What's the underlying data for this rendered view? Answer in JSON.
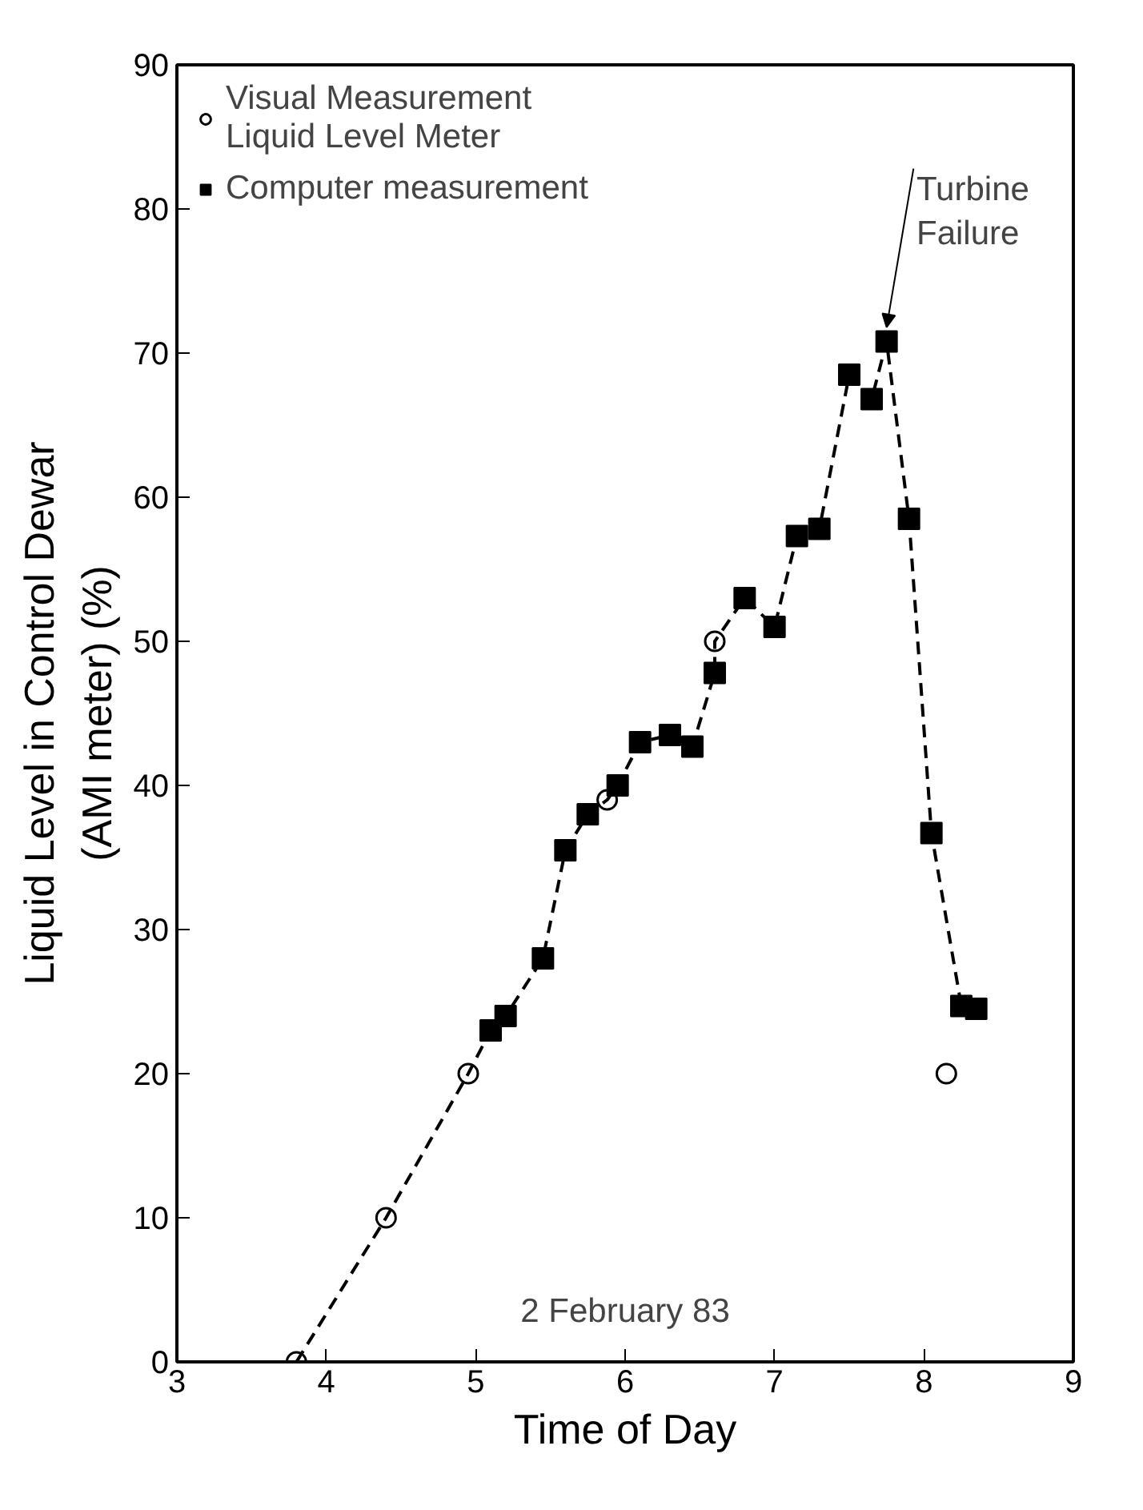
{
  "chart_data": {
    "type": "scatter",
    "xlabel": "Time of Day",
    "ylabel": "Liquid Level in Control Dewar\n(AMI meter) (%)",
    "xlim": [
      3,
      9
    ],
    "ylim": [
      0,
      90
    ],
    "xticks": [
      3,
      4,
      5,
      6,
      7,
      8,
      9
    ],
    "yticks": [
      0,
      10,
      20,
      30,
      40,
      50,
      60,
      70,
      80,
      90
    ],
    "grid": false,
    "legend": "top left",
    "series": [
      {
        "name": "Visual Measurement\nLiquid Level Meter",
        "marker": "circle",
        "color": "#000000",
        "x": [
          3.8,
          4.4,
          4.95,
          5.88,
          6.6,
          8.15
        ],
        "values": [
          0,
          10,
          20,
          39,
          50,
          20
        ]
      },
      {
        "name": "Computer measurement",
        "marker": "square",
        "color": "#000000",
        "x": [
          5.1,
          5.2,
          5.45,
          5.6,
          5.75,
          5.95,
          6.1,
          6.3,
          6.45,
          6.6,
          6.8,
          7.0,
          7.15,
          7.3,
          7.5,
          7.65,
          7.75,
          7.9,
          8.05,
          8.25,
          8.35
        ],
        "values": [
          23,
          24,
          28,
          35.5,
          38,
          40,
          43,
          43.5,
          42.7,
          47.8,
          53,
          51,
          57.3,
          57.8,
          68.5,
          66.8,
          70.8,
          58.5,
          36.7,
          24.7,
          24.5
        ]
      },
      {
        "type": "line",
        "line_style": "dashed",
        "marker": "none",
        "color": "#000000",
        "x": [
          3.8,
          4.4,
          4.95,
          5.1,
          5.2,
          5.45,
          5.6,
          5.75,
          5.88,
          5.95,
          6.1,
          6.3,
          6.45,
          6.6,
          6.6,
          6.8,
          7.0,
          7.15,
          7.3,
          7.5,
          7.65,
          7.75,
          7.9,
          8.05,
          8.25
        ],
        "values": [
          0,
          10,
          20,
          23,
          24,
          28,
          35.5,
          38,
          39,
          40,
          43,
          43.5,
          42.7,
          47.8,
          50,
          53,
          51,
          57.3,
          57.8,
          68.5,
          66.8,
          70.8,
          58.5,
          36.7,
          24.7
        ]
      }
    ],
    "annotations": [
      {
        "text": "Turbine\nFailure",
        "x": 7.75,
        "y": 70.8
      },
      "2 February 83"
    ]
  }
}
